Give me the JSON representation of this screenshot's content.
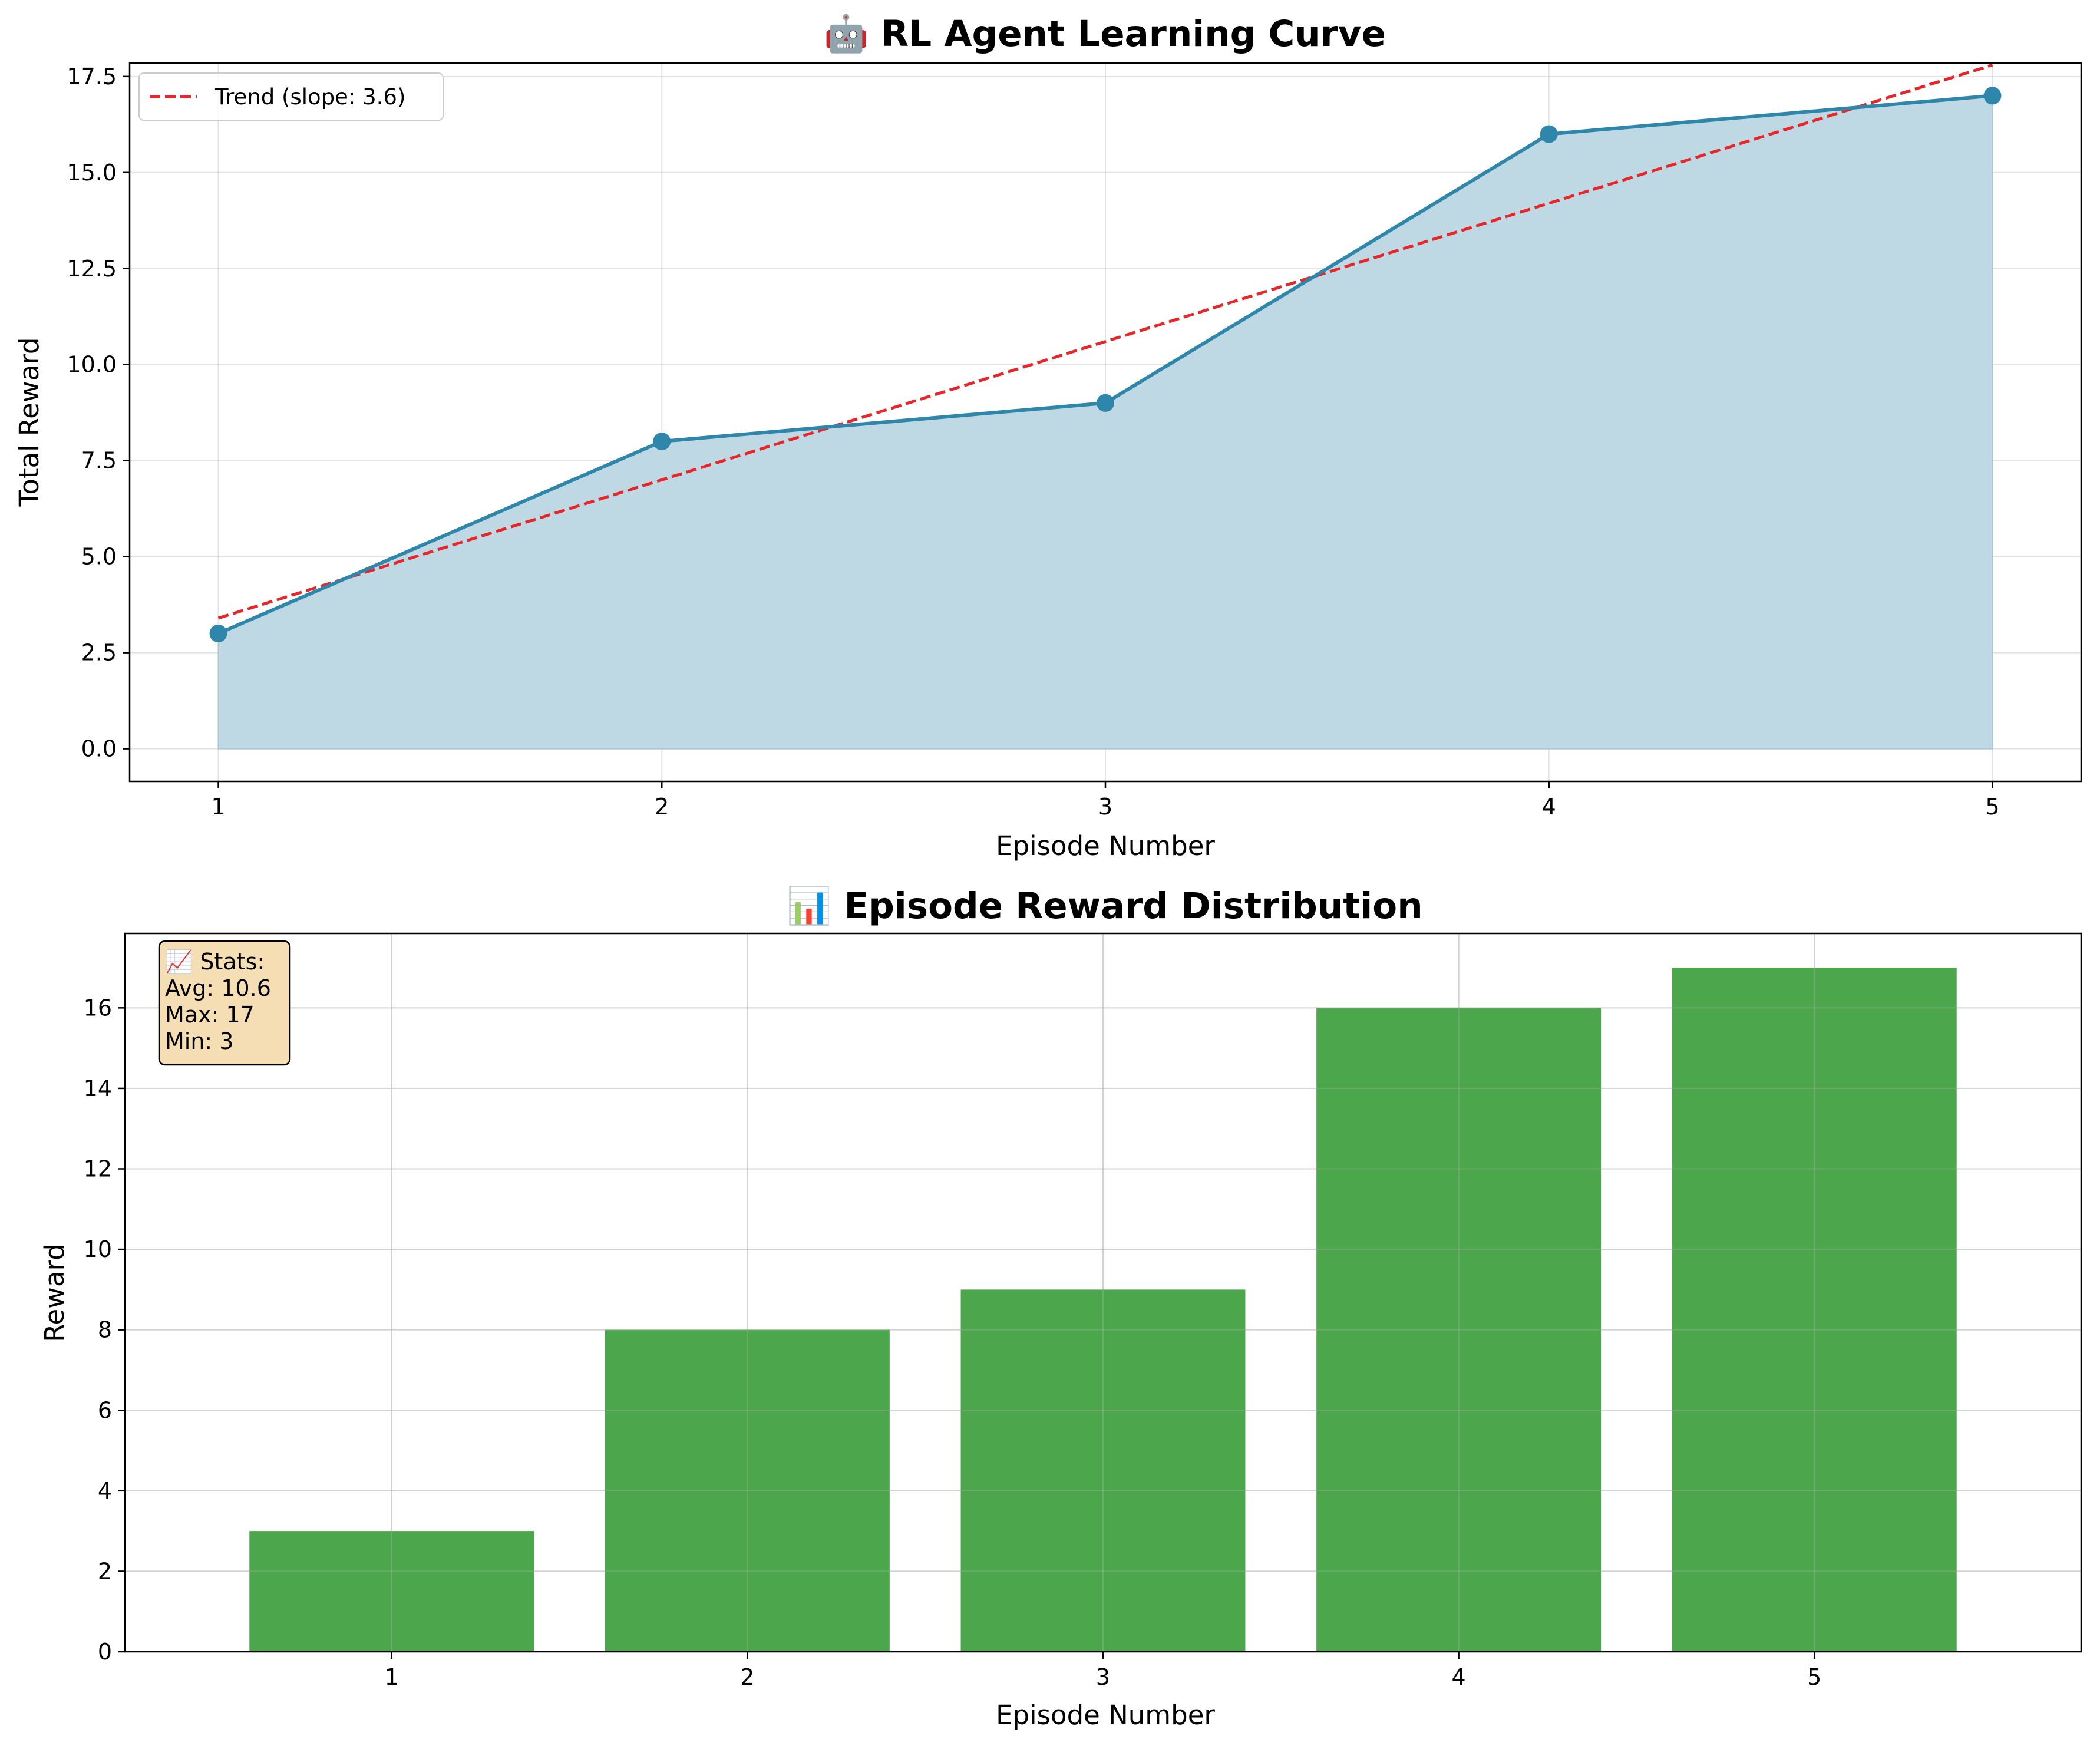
{
  "chart_data": [
    {
      "type": "line",
      "title": "🤖 RL Agent Learning Curve",
      "xlabel": "Episode Number",
      "ylabel": "Total Reward",
      "x": [
        1,
        2,
        3,
        4,
        5
      ],
      "xlim": [
        0.8,
        5.2
      ],
      "ylim": [
        -0.85,
        17.85
      ],
      "xticks": [
        1,
        2,
        3,
        4,
        5
      ],
      "yticks": [
        0.0,
        2.5,
        5.0,
        7.5,
        10.0,
        12.5,
        15.0,
        17.5
      ],
      "ytick_labels": [
        "0.0",
        "2.5",
        "5.0",
        "7.5",
        "10.0",
        "12.5",
        "15.0",
        "17.5"
      ],
      "grid": true,
      "legend_position": "upper-left",
      "series": [
        {
          "values": [
            3,
            8,
            9,
            16,
            17
          ],
          "color": "#2E86AB",
          "fill": "#BFD9E4",
          "style": "solid-markers-filled-area"
        },
        {
          "name": "Trend (slope: 3.6)",
          "values": [
            3.4,
            7.0,
            10.6,
            14.2,
            17.8
          ],
          "color": "#E8262A",
          "style": "dashed"
        }
      ]
    },
    {
      "type": "bar",
      "title": "📊 Episode Reward Distribution",
      "xlabel": "Episode Number",
      "ylabel": "Reward",
      "categories": [
        "1",
        "2",
        "3",
        "4",
        "5"
      ],
      "values": [
        3,
        8,
        9,
        16,
        17
      ],
      "color": "#4CA64C",
      "xlim": [
        0.25,
        5.75
      ],
      "ylim": [
        0,
        17.85
      ],
      "yticks": [
        0,
        2,
        4,
        6,
        8,
        10,
        12,
        14,
        16
      ],
      "grid": true,
      "stats_box": {
        "lines": [
          "📈 Stats:",
          "Avg: 10.6",
          "Max: 17",
          "Min: 3"
        ],
        "position": "top-left",
        "background": "#F5DEB3"
      }
    }
  ]
}
